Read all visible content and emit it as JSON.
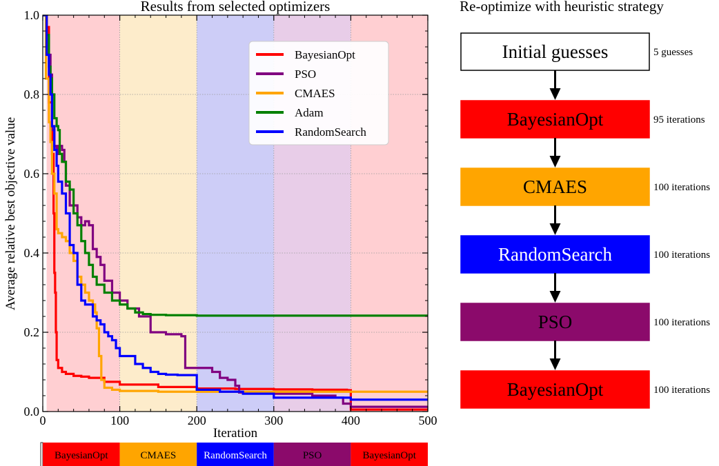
{
  "chart_data": [
    {
      "type": "line",
      "title": "Results from selected optimizers",
      "xlabel": "Iteration",
      "ylabel": "Average relative best objective value",
      "xlim": [
        0,
        500
      ],
      "ylim": [
        0,
        1.0
      ],
      "xticks": [
        0,
        100,
        200,
        300,
        400,
        500
      ],
      "yticks": [
        0.0,
        0.2,
        0.4,
        0.6,
        0.8,
        1.0
      ],
      "xtick_labels": [
        "0",
        "100",
        "200",
        "300",
        "400",
        "500"
      ],
      "ytick_labels": [
        "0.0",
        "0.2",
        "0.4",
        "0.6",
        "0.8",
        "1.0"
      ],
      "grid": true,
      "legend_position": "top-right",
      "phases": [
        {
          "label": "BayesianOpt",
          "start": 5,
          "end": 100,
          "color": "#ffcfd2"
        },
        {
          "label": "CMAES",
          "start": 100,
          "end": 200,
          "color": "#fdeccb"
        },
        {
          "label": "RandomSearch",
          "start": 200,
          "end": 300,
          "color": "#cdcdf7"
        },
        {
          "label": "PSO",
          "start": 300,
          "end": 400,
          "color": "#e8cde8"
        },
        {
          "label": "BayesianOpt",
          "start": 400,
          "end": 500,
          "color": "#ffcfd2"
        }
      ],
      "series": [
        {
          "name": "BayesianOpt",
          "color": "#ff0000",
          "x": [
            0,
            5,
            8,
            12,
            14,
            15,
            16,
            17,
            18,
            20,
            25,
            30,
            40,
            50,
            60,
            80,
            100,
            150,
            200,
            250,
            300,
            350,
            395,
            400,
            450,
            500
          ],
          "y": [
            1.0,
            0.97,
            0.78,
            0.65,
            0.5,
            0.35,
            0.3,
            0.2,
            0.13,
            0.11,
            0.1,
            0.095,
            0.09,
            0.088,
            0.085,
            0.075,
            0.068,
            0.062,
            0.058,
            0.057,
            0.056,
            0.055,
            0.054,
            0.005,
            0.005,
            0.005
          ]
        },
        {
          "name": "PSO",
          "color": "#800080",
          "x": [
            0,
            5,
            10,
            12,
            15,
            18,
            20,
            25,
            28,
            30,
            35,
            40,
            45,
            50,
            55,
            60,
            65,
            70,
            75,
            80,
            90,
            100,
            110,
            125,
            140,
            160,
            180,
            185,
            220,
            230,
            240,
            250,
            255,
            300,
            350,
            380,
            390,
            400,
            450,
            500
          ],
          "y": [
            1.0,
            0.9,
            0.85,
            0.71,
            0.67,
            0.65,
            0.67,
            0.66,
            0.63,
            0.57,
            0.52,
            0.52,
            0.49,
            0.47,
            0.48,
            0.47,
            0.41,
            0.39,
            0.37,
            0.33,
            0.3,
            0.28,
            0.26,
            0.24,
            0.2,
            0.195,
            0.19,
            0.11,
            0.1,
            0.085,
            0.08,
            0.065,
            0.048,
            0.045,
            0.04,
            0.035,
            0.02,
            0.012,
            0.012,
            0.012
          ]
        },
        {
          "name": "CMAES",
          "color": "#ffa500",
          "x": [
            0,
            4,
            8,
            10,
            12,
            15,
            18,
            20,
            25,
            30,
            35,
            40,
            45,
            50,
            55,
            60,
            65,
            68,
            70,
            73,
            76,
            80,
            90,
            100,
            150,
            200,
            250,
            300,
            350,
            400,
            450,
            500
          ],
          "y": [
            1.0,
            0.84,
            0.73,
            0.68,
            0.6,
            0.55,
            0.46,
            0.45,
            0.44,
            0.43,
            0.4,
            0.38,
            0.34,
            0.32,
            0.3,
            0.28,
            0.27,
            0.25,
            0.21,
            0.14,
            0.08,
            0.06,
            0.055,
            0.052,
            0.05,
            0.05,
            0.05,
            0.05,
            0.05,
            0.05,
            0.05,
            0.05
          ]
        },
        {
          "name": "Adam",
          "color": "#008000",
          "x": [
            0,
            5,
            8,
            10,
            12,
            15,
            18,
            20,
            22,
            25,
            30,
            35,
            40,
            45,
            50,
            55,
            60,
            65,
            70,
            80,
            90,
            100,
            110,
            120,
            130,
            140,
            160,
            200,
            300,
            400,
            500
          ],
          "y": [
            1.0,
            0.95,
            0.87,
            0.84,
            0.8,
            0.74,
            0.72,
            0.71,
            0.65,
            0.63,
            0.58,
            0.56,
            0.5,
            0.47,
            0.43,
            0.4,
            0.37,
            0.34,
            0.32,
            0.3,
            0.28,
            0.27,
            0.26,
            0.25,
            0.246,
            0.244,
            0.243,
            0.242,
            0.242,
            0.242,
            0.242
          ]
        },
        {
          "name": "RandomSearch",
          "color": "#0000ff",
          "x": [
            0,
            5,
            8,
            10,
            12,
            15,
            18,
            20,
            25,
            30,
            35,
            40,
            45,
            50,
            55,
            60,
            65,
            70,
            75,
            80,
            85,
            90,
            95,
            100,
            110,
            120,
            130,
            140,
            150,
            160,
            175,
            180,
            200,
            230,
            260,
            300,
            350,
            400,
            450,
            500
          ],
          "y": [
            1.0,
            0.9,
            0.85,
            0.8,
            0.72,
            0.66,
            0.62,
            0.58,
            0.55,
            0.5,
            0.42,
            0.4,
            0.32,
            0.28,
            0.27,
            0.27,
            0.24,
            0.23,
            0.22,
            0.2,
            0.19,
            0.18,
            0.16,
            0.14,
            0.14,
            0.12,
            0.11,
            0.1,
            0.095,
            0.093,
            0.092,
            0.092,
            0.055,
            0.05,
            0.045,
            0.035,
            0.035,
            0.03,
            0.03,
            0.03
          ]
        }
      ]
    },
    {
      "type": "table",
      "title": "Re-optimize with heuristic strategy",
      "steps": [
        {
          "label": "Initial guesses",
          "note": "5 guesses",
          "fill": "#ffffff",
          "border": "#000000"
        },
        {
          "label": "BayesianOpt",
          "note": "95 iterations",
          "fill": "#ff0000",
          "border": "#ff0000"
        },
        {
          "label": "CMAES",
          "note": "100 iterations",
          "fill": "#ffa500",
          "border": "#ffa500"
        },
        {
          "label": "RandomSearch",
          "note": "100 iterations",
          "fill": "#0000ff",
          "border": "#0000ff",
          "text_color": "#ffffff"
        },
        {
          "label": "PSO",
          "note": "100 iterations",
          "fill": "#8b0a6b",
          "border": "#8b0a6b"
        },
        {
          "label": "BayesianOpt",
          "note": "100 iterations",
          "fill": "#ff0000",
          "border": "#ff0000"
        }
      ]
    }
  ],
  "phase_bar": [
    {
      "label": "BayesianOpt",
      "start": 0,
      "end": 100,
      "color": "#ff0000",
      "text_color": "#000000"
    },
    {
      "label": "CMAES",
      "start": 100,
      "end": 200,
      "color": "#ffa500",
      "text_color": "#000000"
    },
    {
      "label": "RandomSearch",
      "start": 200,
      "end": 300,
      "color": "#0000ff",
      "text_color": "#ffffff"
    },
    {
      "label": "PSO",
      "start": 300,
      "end": 400,
      "color": "#8b0a6b",
      "text_color": "#000000"
    },
    {
      "label": "BayesianOpt",
      "start": 400,
      "end": 500,
      "color": "#ff0000",
      "text_color": "#000000"
    }
  ]
}
